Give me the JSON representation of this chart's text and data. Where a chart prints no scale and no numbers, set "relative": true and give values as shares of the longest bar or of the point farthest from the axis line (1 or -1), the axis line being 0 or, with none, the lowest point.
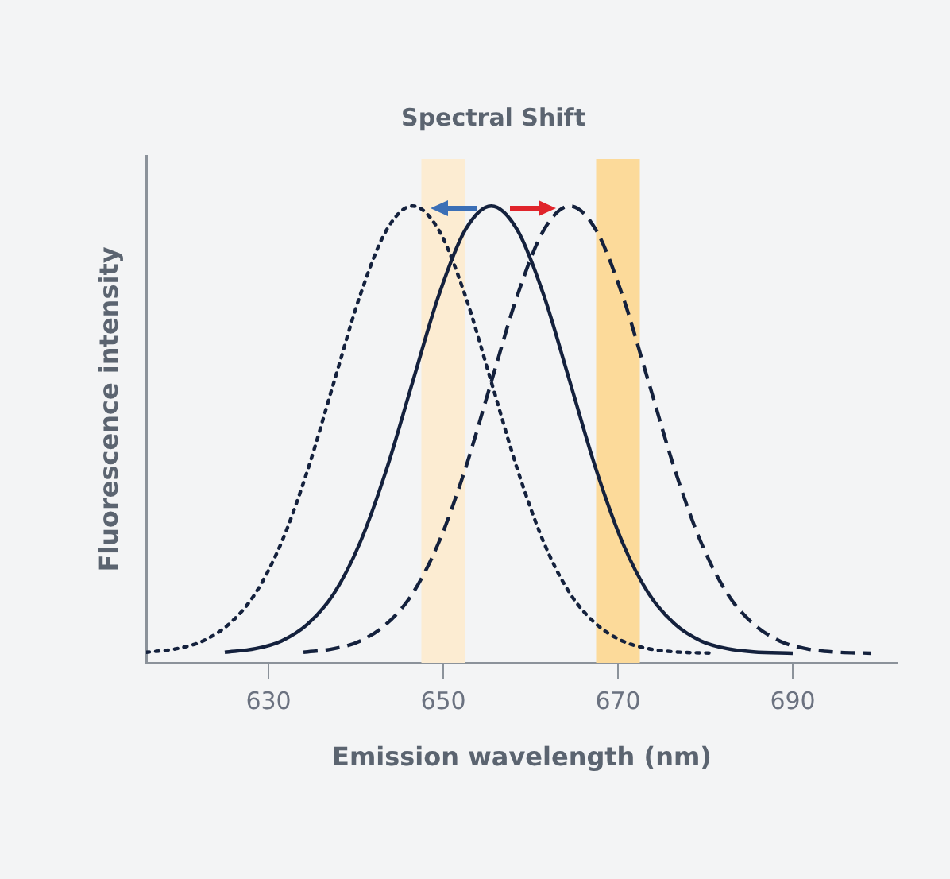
{
  "chart_data": {
    "type": "line",
    "title": "Spectral Shift",
    "xlabel": "Emission wavelength (nm)",
    "ylabel": "Fluorescence intensity",
    "relative": true,
    "xlim": [
      616,
      702
    ],
    "xticks": [
      630,
      650,
      670,
      690
    ],
    "grid": false,
    "legend": false,
    "marker": "none",
    "series": [
      {
        "color": "#14213d",
        "line_style": "dotted",
        "x": [
          616,
          619.5,
          622.5,
          625.5,
          628.5,
          631.5,
          634.5,
          637.5,
          640.5,
          643.5,
          646.5,
          649.5,
          652.5,
          655.5,
          658.5,
          661.5,
          664.5,
          667.5,
          670.5,
          673.5,
          676.5,
          681
        ],
        "values": [
          0.023,
          0.031,
          0.048,
          0.085,
          0.152,
          0.264,
          0.423,
          0.615,
          0.805,
          0.947,
          1.0,
          0.947,
          0.805,
          0.615,
          0.423,
          0.264,
          0.152,
          0.085,
          0.048,
          0.031,
          0.024,
          0.021
        ]
      },
      {
        "color": "#14213d",
        "line_style": "solid",
        "x": [
          625,
          628.5,
          631.5,
          634.5,
          637.5,
          640.5,
          643.5,
          646.5,
          649.5,
          652.5,
          655.5,
          658.5,
          661.5,
          664.5,
          667.5,
          670.5,
          673.5,
          676.5,
          679.5,
          682.5,
          685.5,
          690
        ],
        "values": [
          0.023,
          0.031,
          0.048,
          0.085,
          0.152,
          0.264,
          0.423,
          0.615,
          0.805,
          0.947,
          1.0,
          0.947,
          0.805,
          0.615,
          0.423,
          0.264,
          0.152,
          0.085,
          0.048,
          0.031,
          0.024,
          0.021
        ]
      },
      {
        "color": "#14213d",
        "line_style": "dashed",
        "x": [
          634,
          637.5,
          640.5,
          643.5,
          646.5,
          649.5,
          652.5,
          655.5,
          658.5,
          661.5,
          664.5,
          667.5,
          670.5,
          673.5,
          676.5,
          679.5,
          682.5,
          685.5,
          688.5,
          691.5,
          694.5,
          699
        ],
        "values": [
          0.023,
          0.031,
          0.048,
          0.085,
          0.152,
          0.264,
          0.423,
          0.615,
          0.805,
          0.947,
          1.0,
          0.947,
          0.805,
          0.615,
          0.423,
          0.264,
          0.152,
          0.085,
          0.048,
          0.031,
          0.024,
          0.021
        ]
      }
    ],
    "bands": [
      {
        "axis": "x",
        "from": 647.5,
        "to": 652.5,
        "color": "#fcecd2"
      },
      {
        "axis": "x",
        "from": 667.5,
        "to": 672.5,
        "color": "#fcda9a"
      }
    ]
  }
}
